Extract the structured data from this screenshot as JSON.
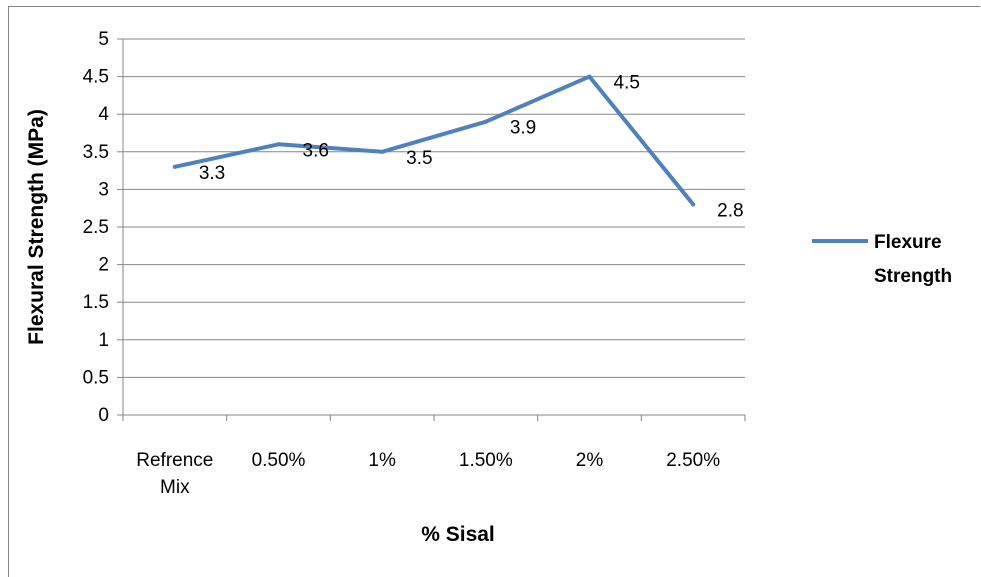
{
  "chart_data": {
    "type": "line",
    "categories": [
      [
        "Refrence",
        "Mix"
      ],
      [
        "0.50%"
      ],
      [
        "1%"
      ],
      [
        "1.50%"
      ],
      [
        "2%"
      ],
      [
        "2.50%"
      ]
    ],
    "series": [
      {
        "name": "Flexure Strength",
        "legend_lines": [
          "Flexure",
          "Strength"
        ],
        "values": [
          3.3,
          3.6,
          3.5,
          3.9,
          4.5,
          2.8
        ],
        "color": "#4f81bd"
      }
    ],
    "data_labels": [
      "3.3",
      "3.6",
      "3.5",
      "3.9",
      "4.5",
      "2.8"
    ],
    "xlabel": "% Sisal",
    "ylabel": "Flexural Strength (MPa)",
    "ylim": [
      0,
      5
    ],
    "yticks": [
      "0",
      "0.5",
      "1",
      "1.5",
      "2",
      "2.5",
      "3",
      "3.5",
      "4",
      "4.5",
      "5"
    ],
    "grid": true,
    "legend_position": "right",
    "gridline_color": "#868686"
  }
}
